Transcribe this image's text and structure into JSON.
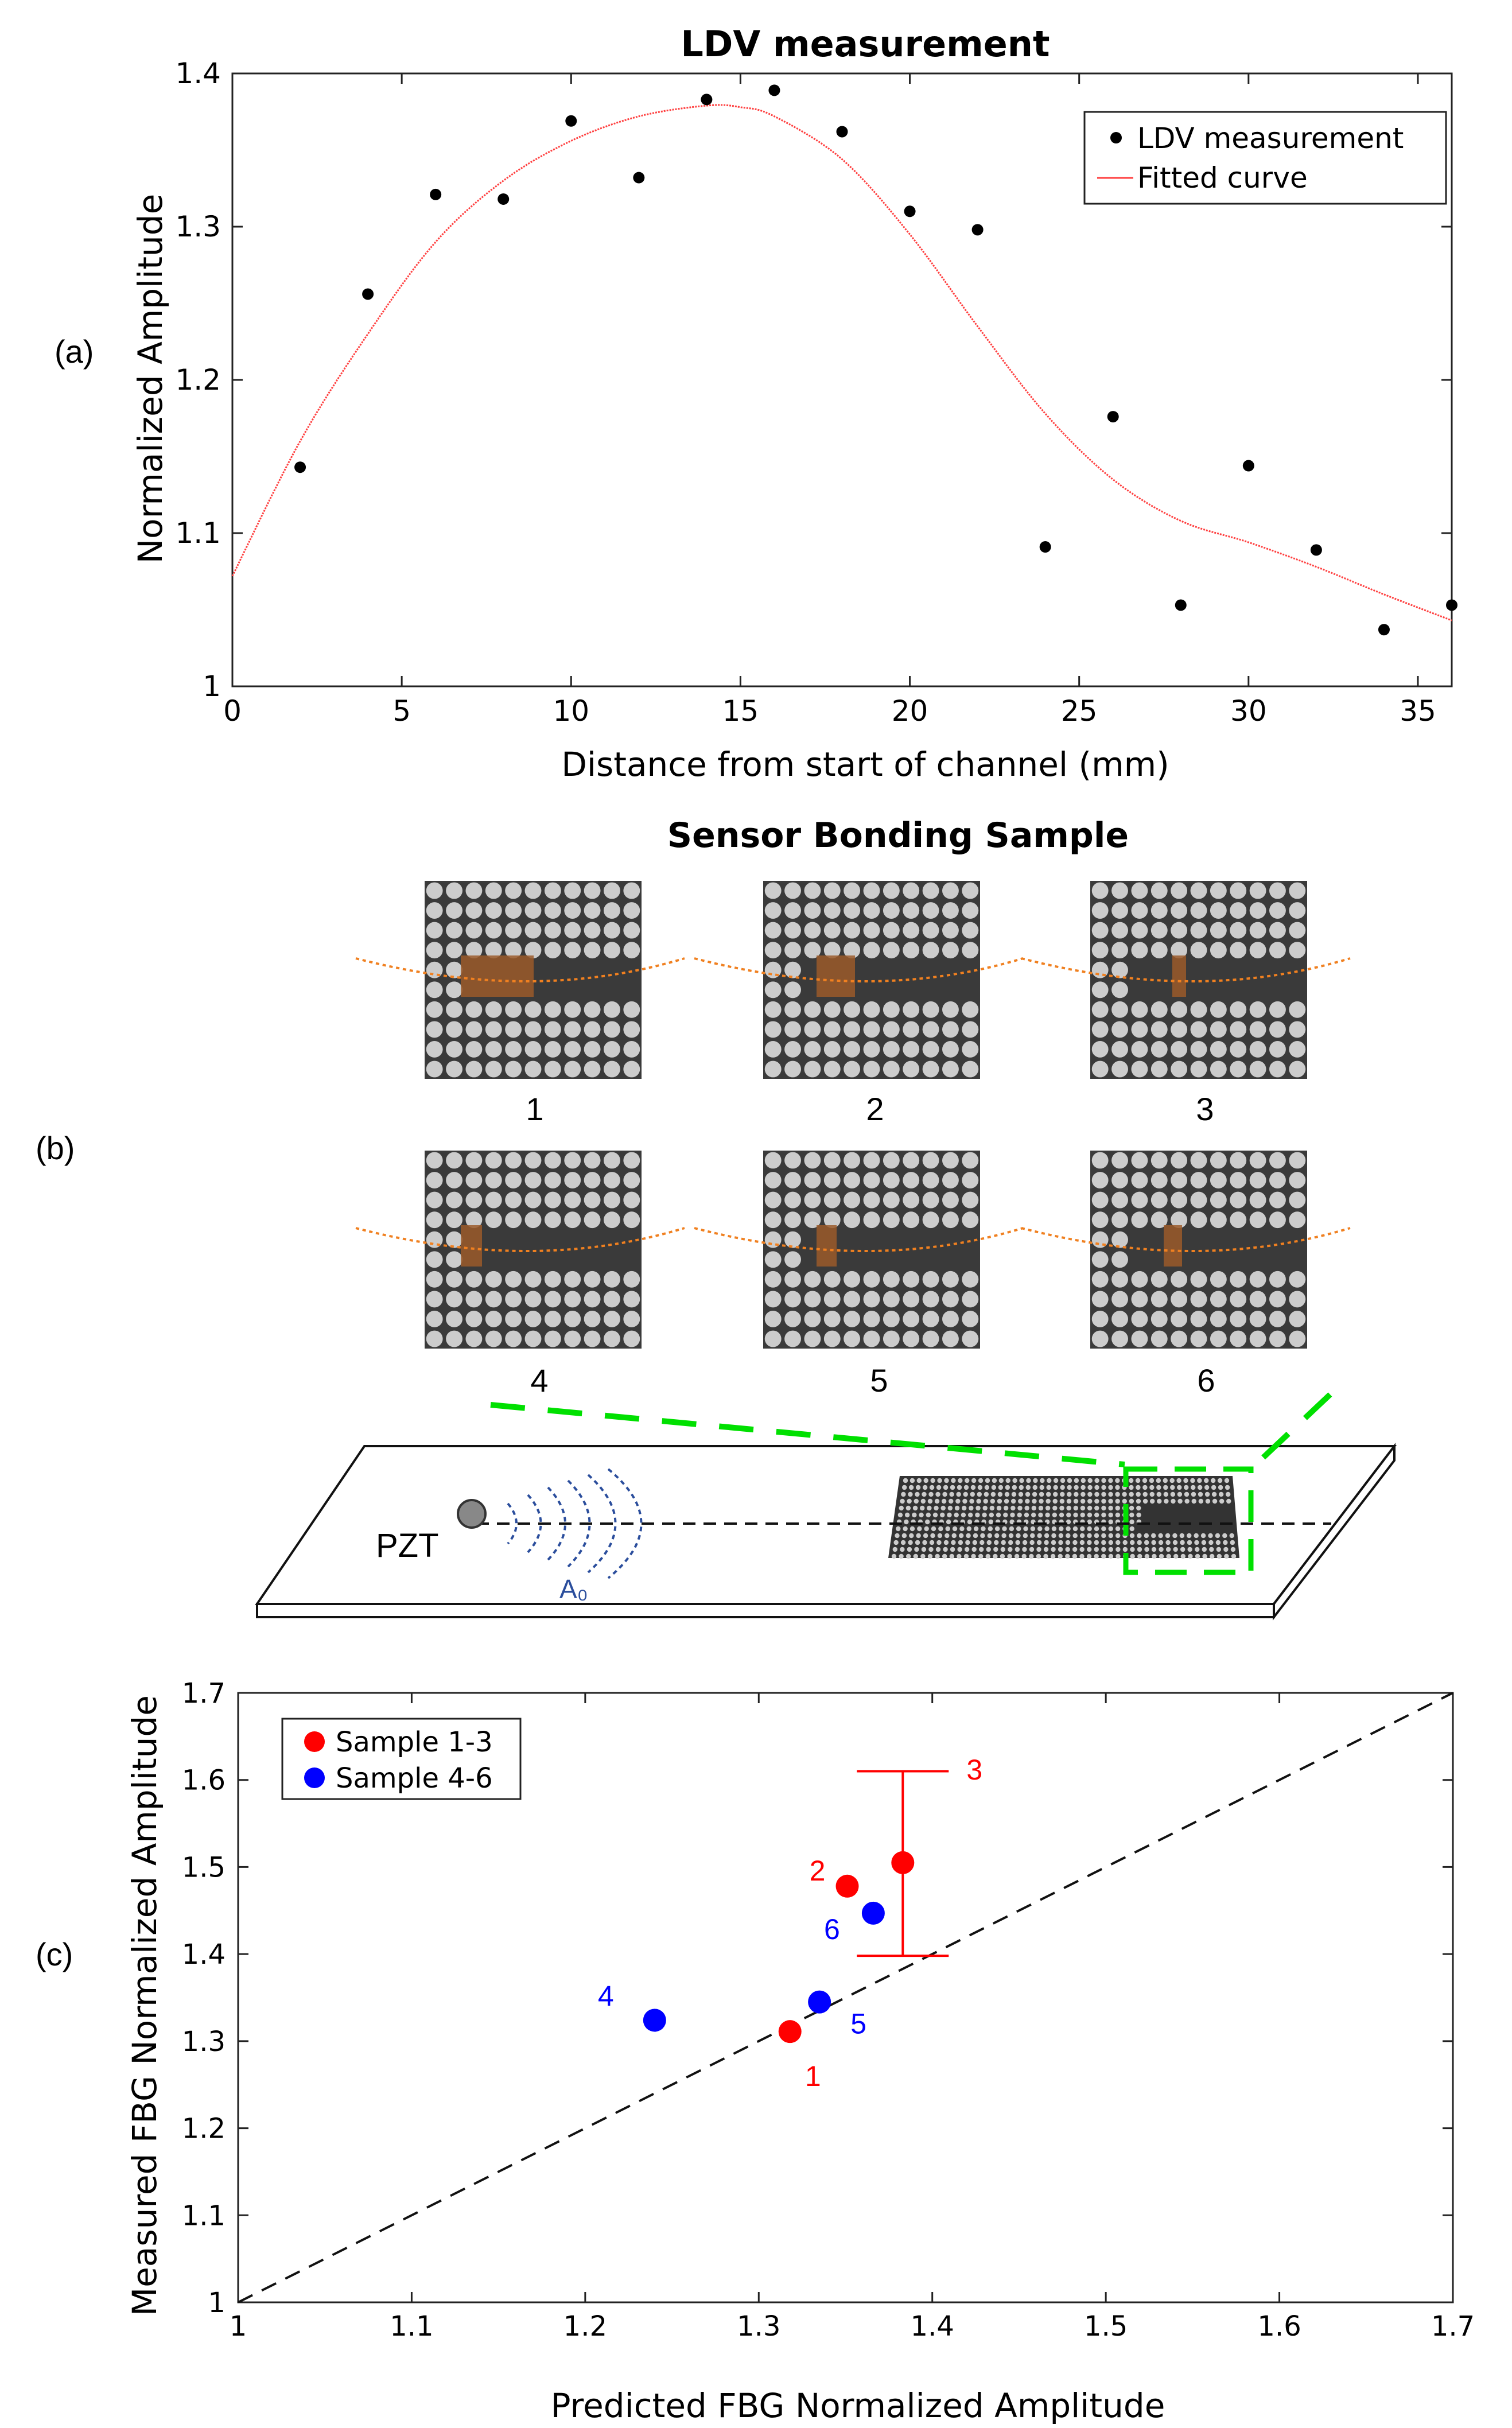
{
  "panel_labels": {
    "a": "(a)",
    "b": "(b)",
    "c": "(c)"
  },
  "colors": {
    "red": "#ff0000",
    "blue": "#0000ff",
    "green": "#00e000",
    "orange": "#f08020",
    "fit": "#ff4040",
    "board": "#ffffff",
    "sample_bg": "#3a3a3a",
    "dot": "#cccccc"
  },
  "sensor": {
    "title": "Sensor Bonding Sample",
    "labels": [
      "1",
      "2",
      "3",
      "4",
      "5",
      "6"
    ],
    "pzt_label": "PZT",
    "wave_label": "A₀"
  },
  "chart_data": [
    {
      "type": "scatter",
      "title": "LDV measurement",
      "xlabel": "Distance from start of channel (mm)",
      "ylabel": "Normalized Amplitude",
      "xlim": [
        0,
        36
      ],
      "ylim": [
        1,
        1.4
      ],
      "xticks": [
        0,
        5,
        10,
        15,
        20,
        25,
        30,
        35
      ],
      "xtick_labels": [
        "0",
        "5",
        "10",
        "15",
        "20",
        "25",
        "30",
        "35"
      ],
      "yticks": [
        1,
        1.1,
        1.2,
        1.3,
        1.4
      ],
      "ytick_labels": [
        "1",
        "1.1",
        "1.2",
        "1.3",
        "1.4"
      ],
      "grid": false,
      "legend": "top-right",
      "series": [
        {
          "name": "LDV measurement",
          "style": "marker",
          "color": "#000000",
          "x": [
            2,
            4,
            6,
            8,
            10,
            12,
            14,
            16,
            18,
            20,
            22,
            24,
            26,
            28,
            30,
            32,
            34,
            36
          ],
          "y": [
            1.143,
            1.256,
            1.321,
            1.318,
            1.369,
            1.332,
            1.383,
            1.389,
            1.362,
            1.31,
            1.298,
            1.091,
            1.176,
            1.053,
            1.144,
            1.089,
            1.037,
            1.053
          ]
        },
        {
          "name": "Fitted curve",
          "style": "line",
          "color": "#ff4040",
          "x": [
            0,
            2,
            4,
            6,
            8,
            10,
            12,
            14,
            15,
            16,
            18,
            20,
            22,
            24,
            26,
            28,
            30,
            32,
            34,
            36
          ],
          "y": [
            1.072,
            1.16,
            1.23,
            1.29,
            1.33,
            1.356,
            1.372,
            1.379,
            1.378,
            1.372,
            1.344,
            1.295,
            1.235,
            1.178,
            1.135,
            1.108,
            1.094,
            1.078,
            1.06,
            1.043
          ]
        }
      ]
    },
    {
      "type": "scatter",
      "title": "",
      "xlabel": "Predicted FBG Normalized Amplitude",
      "ylabel": "Measured FBG Normalized Amplitude",
      "xlim": [
        1,
        1.7
      ],
      "ylim": [
        1,
        1.7
      ],
      "xticks": [
        1,
        1.1,
        1.2,
        1.3,
        1.4,
        1.5,
        1.6,
        1.7
      ],
      "xtick_labels": [
        "1",
        "1.1",
        "1.2",
        "1.3",
        "1.4",
        "1.5",
        "1.6",
        "1.7"
      ],
      "yticks": [
        1,
        1.1,
        1.2,
        1.3,
        1.4,
        1.5,
        1.6,
        1.7
      ],
      "ytick_labels": [
        "1",
        "1.1",
        "1.2",
        "1.3",
        "1.4",
        "1.5",
        "1.6",
        "1.7"
      ],
      "grid": false,
      "legend": "top-left",
      "reference_line": {
        "x": [
          1,
          1.7
        ],
        "y": [
          1,
          1.7
        ],
        "style": "dashed"
      },
      "series": [
        {
          "name": "Sample 1-3",
          "color": "#ff0000",
          "points": [
            {
              "label": "1",
              "x": 1.318,
              "y": 1.311
            },
            {
              "label": "2",
              "x": 1.351,
              "y": 1.478
            },
            {
              "label": "3",
              "x": 1.383,
              "y": 1.505,
              "err_low": 1.398,
              "err_high": 1.61
            }
          ]
        },
        {
          "name": "Sample 4-6",
          "color": "#0000ff",
          "points": [
            {
              "label": "4",
              "x": 1.24,
              "y": 1.324
            },
            {
              "label": "5",
              "x": 1.335,
              "y": 1.345
            },
            {
              "label": "6",
              "x": 1.366,
              "y": 1.447
            }
          ]
        }
      ]
    }
  ]
}
